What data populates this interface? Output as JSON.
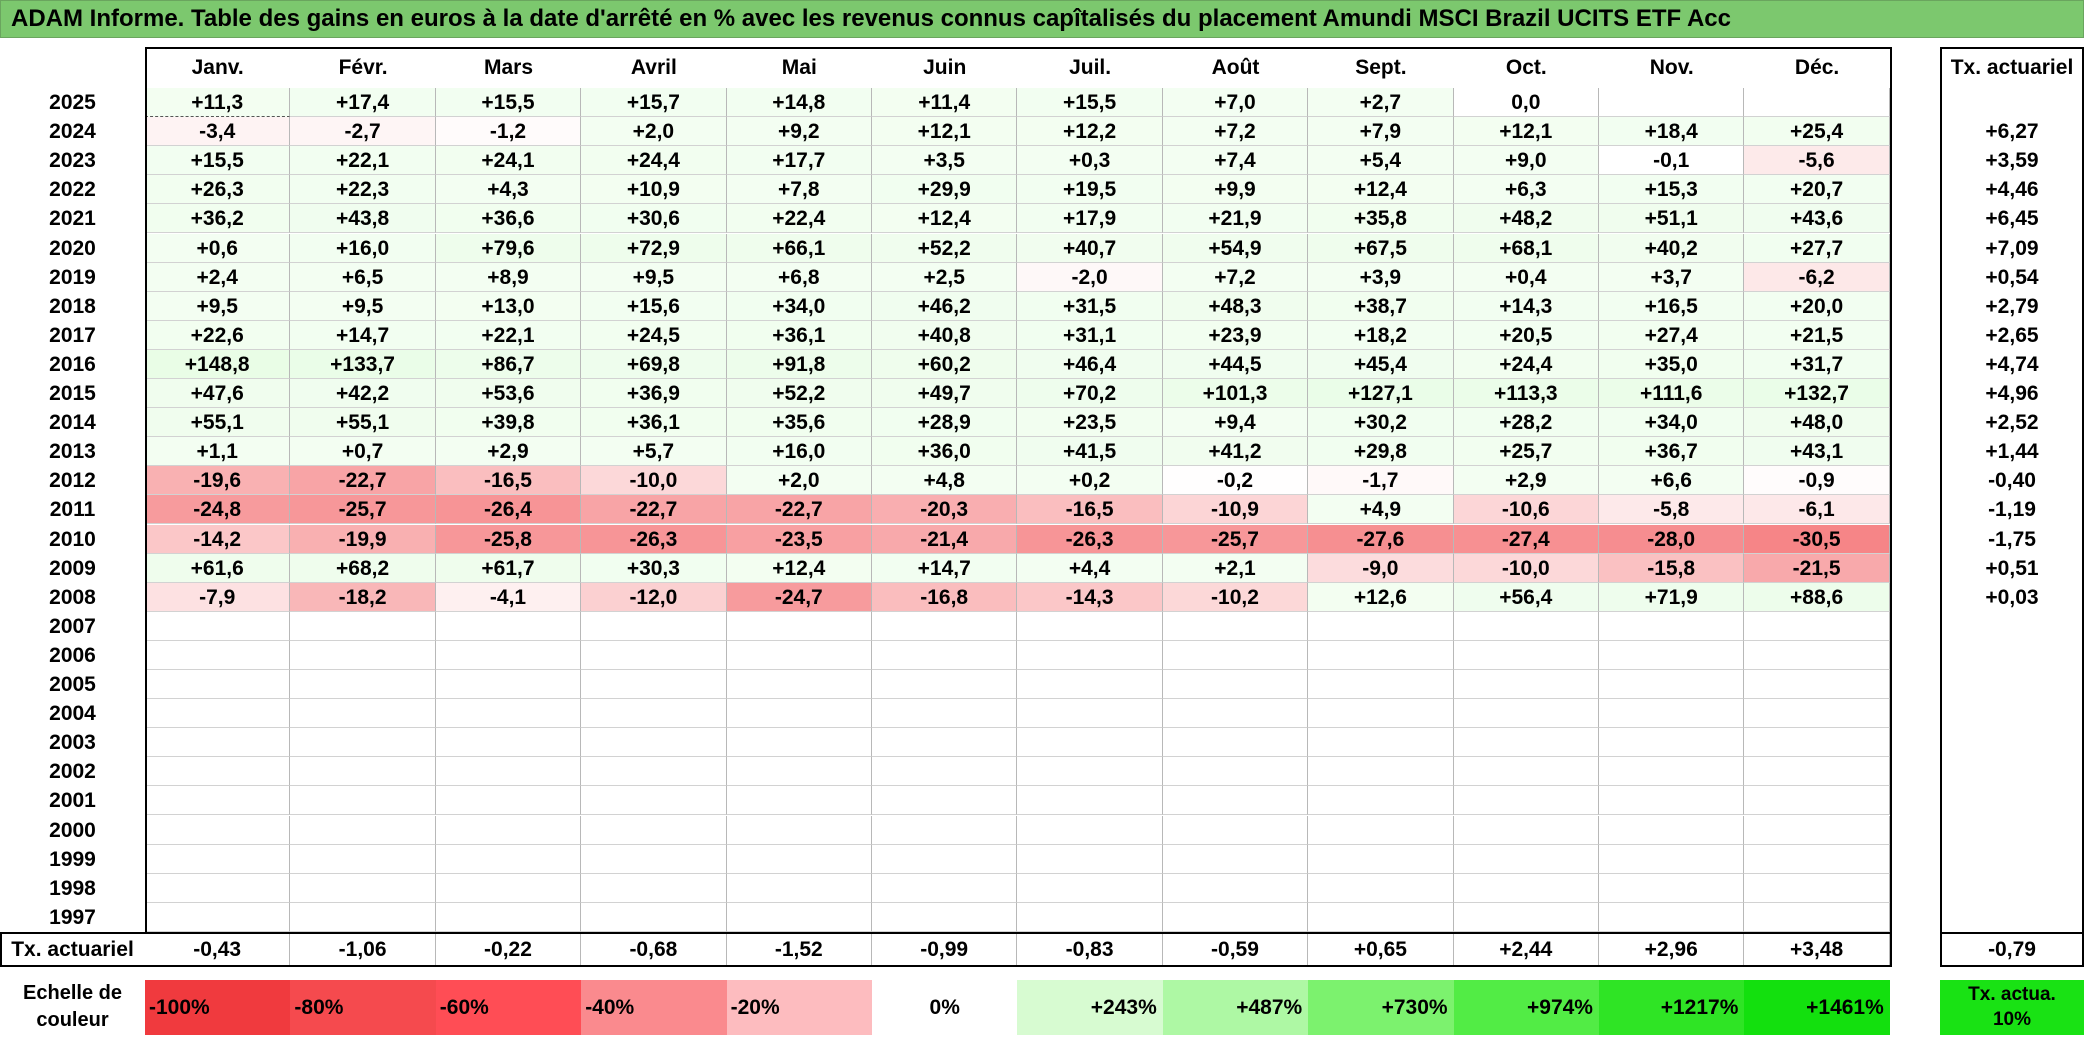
{
  "title": "ADAM Informe. Table des gains en euros à la date d'arrêté en % avec les revenus connus capîtalisés du placement Amundi MSCI Brazil UCITS ETF Acc",
  "months": [
    "Janv.",
    "Févr.",
    "Mars",
    "Avril",
    "Mai",
    "Juin",
    "Juil.",
    "Août",
    "Sept.",
    "Oct.",
    "Nov.",
    "Déc."
  ],
  "annual_header": "Tx. actuariel",
  "rows": [
    {
      "year": "2025",
      "values": [
        "+11,3",
        "+17,4",
        "+15,5",
        "+15,7",
        "+14,8",
        "+11,4",
        "+15,5",
        "+7,0",
        "+2,7",
        "0,0",
        "",
        ""
      ],
      "annual": ""
    },
    {
      "year": "2024",
      "values": [
        "-3,4",
        "-2,7",
        "-1,2",
        "+2,0",
        "+9,2",
        "+12,1",
        "+12,2",
        "+7,2",
        "+7,9",
        "+12,1",
        "+18,4",
        "+25,4"
      ],
      "annual": "+6,27"
    },
    {
      "year": "2023",
      "values": [
        "+15,5",
        "+22,1",
        "+24,1",
        "+24,4",
        "+17,7",
        "+3,5",
        "+0,3",
        "+7,4",
        "+5,4",
        "+9,0",
        "-0,1",
        "-5,6"
      ],
      "annual": "+3,59"
    },
    {
      "year": "2022",
      "values": [
        "+26,3",
        "+22,3",
        "+4,3",
        "+10,9",
        "+7,8",
        "+29,9",
        "+19,5",
        "+9,9",
        "+12,4",
        "+6,3",
        "+15,3",
        "+20,7"
      ],
      "annual": "+4,46"
    },
    {
      "year": "2021",
      "values": [
        "+36,2",
        "+43,8",
        "+36,6",
        "+30,6",
        "+22,4",
        "+12,4",
        "+17,9",
        "+21,9",
        "+35,8",
        "+48,2",
        "+51,1",
        "+43,6"
      ],
      "annual": "+6,45"
    },
    {
      "year": "2020",
      "values": [
        "+0,6",
        "+16,0",
        "+79,6",
        "+72,9",
        "+66,1",
        "+52,2",
        "+40,7",
        "+54,9",
        "+67,5",
        "+68,1",
        "+40,2",
        "+27,7"
      ],
      "annual": "+7,09"
    },
    {
      "year": "2019",
      "values": [
        "+2,4",
        "+6,5",
        "+8,9",
        "+9,5",
        "+6,8",
        "+2,5",
        "-2,0",
        "+7,2",
        "+3,9",
        "+0,4",
        "+3,7",
        "-6,2"
      ],
      "annual": "+0,54"
    },
    {
      "year": "2018",
      "values": [
        "+9,5",
        "+9,5",
        "+13,0",
        "+15,6",
        "+34,0",
        "+46,2",
        "+31,5",
        "+48,3",
        "+38,7",
        "+14,3",
        "+16,5",
        "+20,0"
      ],
      "annual": "+2,79"
    },
    {
      "year": "2017",
      "values": [
        "+22,6",
        "+14,7",
        "+22,1",
        "+24,5",
        "+36,1",
        "+40,8",
        "+31,1",
        "+23,9",
        "+18,2",
        "+20,5",
        "+27,4",
        "+21,5"
      ],
      "annual": "+2,65"
    },
    {
      "year": "2016",
      "values": [
        "+148,8",
        "+133,7",
        "+86,7",
        "+69,8",
        "+91,8",
        "+60,2",
        "+46,4",
        "+44,5",
        "+45,4",
        "+24,4",
        "+35,0",
        "+31,7"
      ],
      "annual": "+4,74"
    },
    {
      "year": "2015",
      "values": [
        "+47,6",
        "+42,2",
        "+53,6",
        "+36,9",
        "+52,2",
        "+49,7",
        "+70,2",
        "+101,3",
        "+127,1",
        "+113,3",
        "+111,6",
        "+132,7"
      ],
      "annual": "+4,96"
    },
    {
      "year": "2014",
      "values": [
        "+55,1",
        "+55,1",
        "+39,8",
        "+36,1",
        "+35,6",
        "+28,9",
        "+23,5",
        "+9,4",
        "+30,2",
        "+28,2",
        "+34,0",
        "+48,0"
      ],
      "annual": "+2,52"
    },
    {
      "year": "2013",
      "values": [
        "+1,1",
        "+0,7",
        "+2,9",
        "+5,7",
        "+16,0",
        "+36,0",
        "+41,5",
        "+41,2",
        "+29,8",
        "+25,7",
        "+36,7",
        "+43,1"
      ],
      "annual": "+1,44"
    },
    {
      "year": "2012",
      "values": [
        "-19,6",
        "-22,7",
        "-16,5",
        "-10,0",
        "+2,0",
        "+4,8",
        "+0,2",
        "-0,2",
        "-1,7",
        "+2,9",
        "+6,6",
        "-0,9"
      ],
      "annual": "-0,40"
    },
    {
      "year": "2011",
      "values": [
        "-24,8",
        "-25,7",
        "-26,4",
        "-22,7",
        "-22,7",
        "-20,3",
        "-16,5",
        "-10,9",
        "+4,9",
        "-10,6",
        "-5,8",
        "-6,1"
      ],
      "annual": "-1,19"
    },
    {
      "year": "2010",
      "values": [
        "-14,2",
        "-19,9",
        "-25,8",
        "-26,3",
        "-23,5",
        "-21,4",
        "-26,3",
        "-25,7",
        "-27,6",
        "-27,4",
        "-28,0",
        "-30,5"
      ],
      "annual": "-1,75"
    },
    {
      "year": "2009",
      "values": [
        "+61,6",
        "+68,2",
        "+61,7",
        "+30,3",
        "+12,4",
        "+14,7",
        "+4,4",
        "+2,1",
        "-9,0",
        "-10,0",
        "-15,8",
        "-21,5"
      ],
      "annual": "+0,51"
    },
    {
      "year": "2008",
      "values": [
        "-7,9",
        "-18,2",
        "-4,1",
        "-12,0",
        "-24,7",
        "-16,8",
        "-14,3",
        "-10,2",
        "+12,6",
        "+56,4",
        "+71,9",
        "+88,6"
      ],
      "annual": "+0,03"
    },
    {
      "year": "2007",
      "values": [
        "",
        "",
        "",
        "",
        "",
        "",
        "",
        "",
        "",
        "",
        "",
        ""
      ],
      "annual": ""
    },
    {
      "year": "2006",
      "values": [
        "",
        "",
        "",
        "",
        "",
        "",
        "",
        "",
        "",
        "",
        "",
        ""
      ],
      "annual": ""
    },
    {
      "year": "2005",
      "values": [
        "",
        "",
        "",
        "",
        "",
        "",
        "",
        "",
        "",
        "",
        "",
        ""
      ],
      "annual": ""
    },
    {
      "year": "2004",
      "values": [
        "",
        "",
        "",
        "",
        "",
        "",
        "",
        "",
        "",
        "",
        "",
        ""
      ],
      "annual": ""
    },
    {
      "year": "2003",
      "values": [
        "",
        "",
        "",
        "",
        "",
        "",
        "",
        "",
        "",
        "",
        "",
        ""
      ],
      "annual": ""
    },
    {
      "year": "2002",
      "values": [
        "",
        "",
        "",
        "",
        "",
        "",
        "",
        "",
        "",
        "",
        "",
        ""
      ],
      "annual": ""
    },
    {
      "year": "2001",
      "values": [
        "",
        "",
        "",
        "",
        "",
        "",
        "",
        "",
        "",
        "",
        "",
        ""
      ],
      "annual": ""
    },
    {
      "year": "2000",
      "values": [
        "",
        "",
        "",
        "",
        "",
        "",
        "",
        "",
        "",
        "",
        "",
        ""
      ],
      "annual": ""
    },
    {
      "year": "1999",
      "values": [
        "",
        "",
        "",
        "",
        "",
        "",
        "",
        "",
        "",
        "",
        "",
        ""
      ],
      "annual": ""
    },
    {
      "year": "1998",
      "values": [
        "",
        "",
        "",
        "",
        "",
        "",
        "",
        "",
        "",
        "",
        "",
        ""
      ],
      "annual": ""
    },
    {
      "year": "1997",
      "values": [
        "",
        "",
        "",
        "",
        "",
        "",
        "",
        "",
        "",
        "",
        "",
        ""
      ],
      "annual": ""
    }
  ],
  "summary": {
    "label": "Tx. actuariel",
    "values": [
      "-0,43",
      "-1,06",
      "-0,22",
      "-0,68",
      "-1,52",
      "-0,99",
      "-0,83",
      "-0,59",
      "+0,65",
      "+2,44",
      "+2,96",
      "+3,48"
    ],
    "overall": "-0,79"
  },
  "scale": {
    "label": "Echelle de couleur",
    "items": [
      {
        "text": "-100%",
        "color": "#f03a3e",
        "align": "left"
      },
      {
        "text": "-80%",
        "color": "#f54a4e",
        "align": "left"
      },
      {
        "text": "-60%",
        "color": "#ff4d55",
        "align": "left"
      },
      {
        "text": "-40%",
        "color": "#fa8a8e",
        "align": "left"
      },
      {
        "text": "-20%",
        "color": "#fdbcbf",
        "align": "left"
      },
      {
        "text": "0%",
        "color": "#ffffff",
        "align": "center"
      },
      {
        "text": "+243%",
        "color": "#d7fbd1",
        "align": "right"
      },
      {
        "text": "+487%",
        "color": "#aef8a4",
        "align": "right"
      },
      {
        "text": "+730%",
        "color": "#7cf26e",
        "align": "right"
      },
      {
        "text": "+974%",
        "color": "#52ec45",
        "align": "right"
      },
      {
        "text": "+1217%",
        "color": "#2fe425",
        "align": "right"
      },
      {
        "text": "+1461%",
        "color": "#13e00e",
        "align": "right"
      }
    ],
    "annual_scale_label": "Tx. actua. 10%",
    "annual_scale_color": "#19e214"
  },
  "colors": {
    "title_bg": "#7cc86e",
    "positive_max": "#13e00e",
    "negative_max": "#f03a3e"
  }
}
